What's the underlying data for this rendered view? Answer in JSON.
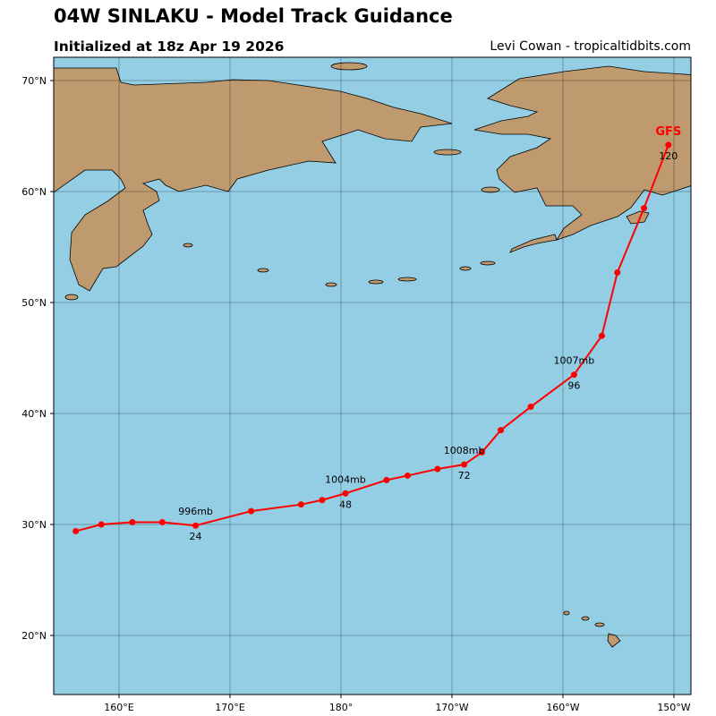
{
  "header": {
    "title": "04W SINLAKU - Model Track Guidance",
    "subtitle": "Initialized at 18z Apr 19 2026",
    "credit": "Levi Cowan - tropicaltidbits.com"
  },
  "map": {
    "ocean_color": "#94cee4",
    "land_color": "#be9a6e",
    "track_color": "#ff0000",
    "lon_ticks": [
      {
        "lon": 160,
        "label": "160°E"
      },
      {
        "lon": 170,
        "label": "170°E"
      },
      {
        "lon": 180,
        "label": "180°"
      },
      {
        "lon": 190,
        "label": "170°W"
      },
      {
        "lon": 200,
        "label": "160°W"
      },
      {
        "lon": 210,
        "label": "150°W"
      }
    ],
    "lat_ticks": [
      {
        "lat": 70,
        "label": "70°N"
      },
      {
        "lat": 60,
        "label": "60°N"
      },
      {
        "lat": 50,
        "label": "50°N"
      },
      {
        "lat": 40,
        "label": "40°N"
      },
      {
        "lat": 30,
        "label": "30°N"
      },
      {
        "lat": 20,
        "label": "20°N"
      }
    ],
    "extent": {
      "lon_min": 154.1,
      "lon_max": 211.5,
      "lat_min": 14.7,
      "lat_max": 72.1
    }
  },
  "track": {
    "model": "GFS",
    "points": [
      [
        156.1,
        29.4
      ],
      [
        158.4,
        30.0
      ],
      [
        161.2,
        30.2
      ],
      [
        163.9,
        30.2
      ],
      [
        166.9,
        29.9
      ],
      [
        171.9,
        31.2
      ],
      [
        176.4,
        31.8
      ],
      [
        178.3,
        32.2
      ],
      [
        180.4,
        32.8
      ],
      [
        184.1,
        34.0
      ],
      [
        186.0,
        34.4
      ],
      [
        188.7,
        35.0
      ],
      [
        191.1,
        35.4
      ],
      [
        192.7,
        36.5
      ],
      [
        194.4,
        38.5
      ],
      [
        197.1,
        40.6
      ],
      [
        201.0,
        43.5
      ],
      [
        203.5,
        47.0
      ],
      [
        204.9,
        52.7
      ],
      [
        207.3,
        58.5
      ],
      [
        209.5,
        64.2
      ]
    ],
    "annotations": [
      {
        "index": 4,
        "hour": "24",
        "pressure": "996mb"
      },
      {
        "index": 8,
        "hour": "48",
        "pressure": "1004mb"
      },
      {
        "index": 12,
        "hour": "72",
        "pressure": "1008mb"
      },
      {
        "index": 16,
        "hour": "96",
        "pressure": "1007mb"
      },
      {
        "index": 20,
        "hour": "120",
        "pressure": ""
      }
    ]
  }
}
